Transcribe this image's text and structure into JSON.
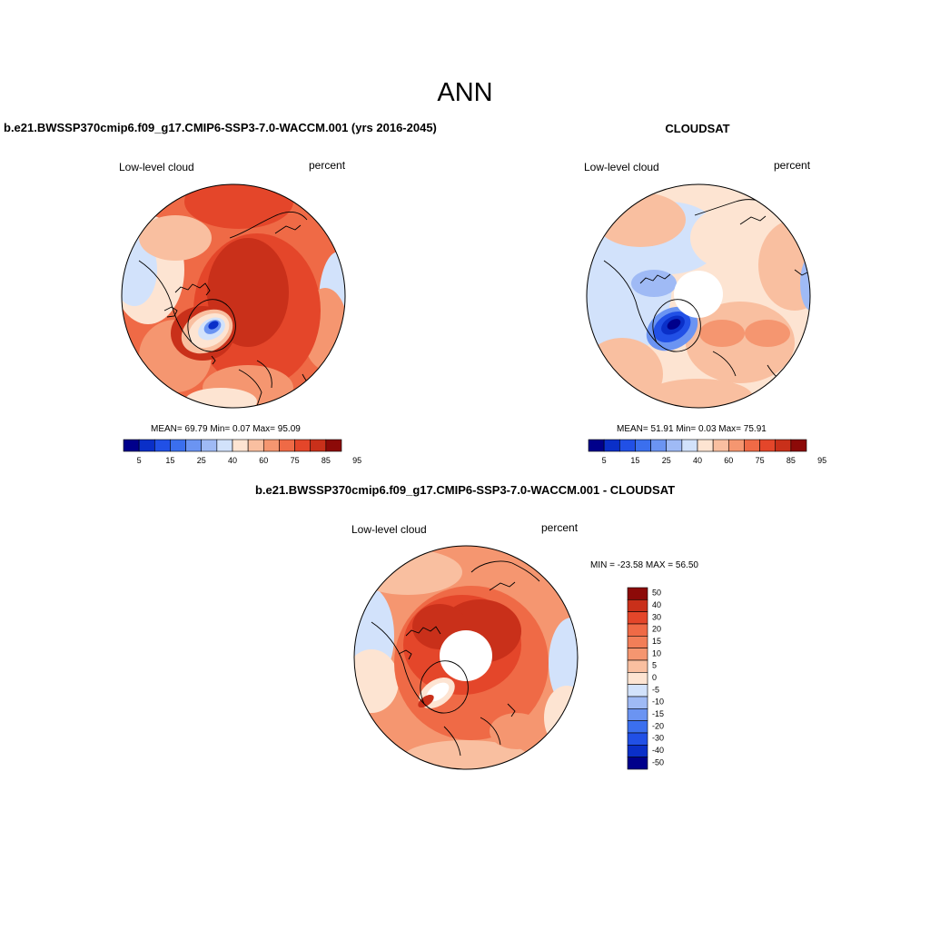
{
  "title": "ANN",
  "panels": {
    "model": {
      "title": "b.e21.BWSSP370cmip6.f09_g17.CMIP6-SSP3-7.0-WACCM.001 (yrs 2016-2045)",
      "variable": "Low-level cloud",
      "units": "percent",
      "stats_text": "MEAN=  69.79  Min=   0.07  Max=  95.09",
      "stats": {
        "mean": 69.79,
        "min": 0.07,
        "max": 95.09
      }
    },
    "obs": {
      "title": "CLOUDSAT",
      "variable": "Low-level cloud",
      "units": "percent",
      "stats_text": "MEAN=  51.91  Min=   0.03  Max=  75.91",
      "stats": {
        "mean": 51.91,
        "min": 0.03,
        "max": 75.91
      }
    },
    "diff": {
      "title": "b.e21.BWSSP370cmip6.f09_g17.CMIP6-SSP3-7.0-WACCM.001 - CLOUDSAT",
      "variable": "Low-level cloud",
      "units": "percent",
      "stats_text": "MIN = -23.58 MAX =  56.50",
      "stats": {
        "min": -23.58,
        "max": 56.5
      }
    }
  },
  "colorbars": {
    "abs_labels": [
      "5",
      "15",
      "25",
      "40",
      "60",
      "75",
      "85",
      "95"
    ],
    "abs_colors": [
      "#00008b",
      "#0a2fc8",
      "#2150e6",
      "#3b6fee",
      "#6b94f2",
      "#9fbaf5",
      "#d2e2fb",
      "#fde4d2",
      "#f9bfa0",
      "#f59670",
      "#ef6a46",
      "#e4462a",
      "#c9301a",
      "#8c0a08"
    ],
    "diff_labels": [
      "50",
      "40",
      "30",
      "20",
      "15",
      "10",
      "5",
      "0",
      "-5",
      "-10",
      "-15",
      "-20",
      "-30",
      "-40",
      "-50"
    ],
    "diff_colors": [
      "#8c0a08",
      "#c9301a",
      "#e4462a",
      "#ef6a46",
      "#f27e58",
      "#f59670",
      "#f9bfa0",
      "#fde4d2",
      "#d2e2fb",
      "#9fbaf5",
      "#6b94f2",
      "#3b6fee",
      "#2150e6",
      "#0a2fc8",
      "#00008b"
    ]
  },
  "map": {
    "projection": "north polar stereographic",
    "region": "Arctic"
  }
}
